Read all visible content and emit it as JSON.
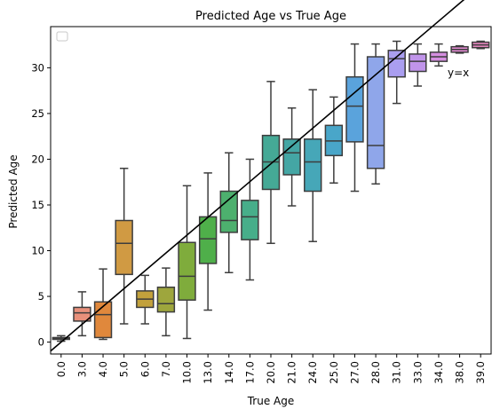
{
  "chart_data": {
    "type": "box",
    "title": "Predicted Age vs True Age",
    "xlabel": "True Age",
    "ylabel": "Predicted Age",
    "ylim": [
      -1.3,
      34.5
    ],
    "yticks": [
      0,
      5,
      10,
      15,
      20,
      25,
      30
    ],
    "grid": false,
    "legend": "top-left (empty)",
    "reference_line": {
      "label": "y=x",
      "color": "#000000"
    },
    "categories": [
      "0.0",
      "3.0",
      "4.0",
      "5.0",
      "6.0",
      "7.0",
      "10.0",
      "13.0",
      "14.0",
      "17.0",
      "20.0",
      "21.0",
      "24.0",
      "25.0",
      "27.0",
      "28.0",
      "31.0",
      "33.0",
      "34.0",
      "38.0",
      "39.0"
    ],
    "boxes": [
      {
        "category": "0.0",
        "min": 0.1,
        "q1": 0.3,
        "median": 0.4,
        "q3": 0.5,
        "max": 0.7,
        "color": "#e07b7b"
      },
      {
        "category": "3.0",
        "min": 0.7,
        "q1": 2.3,
        "median": 3.2,
        "q3": 3.8,
        "max": 5.5,
        "color": "#e8907b"
      },
      {
        "category": "4.0",
        "min": 0.3,
        "q1": 0.5,
        "median": 3.0,
        "q3": 4.4,
        "max": 8.0,
        "color": "#e0883c"
      },
      {
        "category": "5.0",
        "min": 2.0,
        "q1": 7.4,
        "median": 10.8,
        "q3": 13.3,
        "max": 19.0,
        "color": "#d09a43"
      },
      {
        "category": "6.0",
        "min": 2.0,
        "q1": 3.8,
        "median": 4.7,
        "q3": 5.6,
        "max": 7.3,
        "color": "#c2a13c"
      },
      {
        "category": "7.0",
        "min": 0.7,
        "q1": 3.3,
        "median": 4.2,
        "q3": 6.0,
        "max": 8.1,
        "color": "#9ea63d"
      },
      {
        "category": "10.0",
        "min": 0.4,
        "q1": 4.6,
        "median": 7.2,
        "q3": 10.9,
        "max": 17.1,
        "color": "#7fac3c"
      },
      {
        "category": "13.0",
        "min": 3.5,
        "q1": 8.6,
        "median": 11.3,
        "q3": 13.7,
        "max": 18.5,
        "color": "#4faf4a"
      },
      {
        "category": "14.0",
        "min": 7.6,
        "q1": 12.0,
        "median": 13.3,
        "q3": 16.5,
        "max": 20.7,
        "color": "#4db06e"
      },
      {
        "category": "17.0",
        "min": 6.8,
        "q1": 11.2,
        "median": 13.7,
        "q3": 15.5,
        "max": 20.0,
        "color": "#47ae8a"
      },
      {
        "category": "20.0",
        "min": 10.8,
        "q1": 16.7,
        "median": 19.7,
        "q3": 22.6,
        "max": 28.5,
        "color": "#45a996"
      },
      {
        "category": "21.0",
        "min": 14.9,
        "q1": 18.3,
        "median": 20.7,
        "q3": 22.2,
        "max": 25.6,
        "color": "#44a6a4"
      },
      {
        "category": "24.0",
        "min": 11.0,
        "q1": 16.5,
        "median": 19.7,
        "q3": 22.2,
        "max": 27.6,
        "color": "#46a7b8"
      },
      {
        "category": "25.0",
        "min": 17.4,
        "q1": 20.4,
        "median": 22.0,
        "q3": 23.7,
        "max": 26.8,
        "color": "#49a6c9"
      },
      {
        "category": "27.0",
        "min": 16.5,
        "q1": 21.9,
        "median": 25.8,
        "q3": 29.0,
        "max": 32.6,
        "color": "#5aa3dc"
      },
      {
        "category": "28.0",
        "min": 17.3,
        "q1": 19.0,
        "median": 21.5,
        "q3": 31.2,
        "max": 32.6,
        "color": "#8fa6ea"
      },
      {
        "category": "31.0",
        "min": 26.1,
        "q1": 29.0,
        "median": 31.0,
        "q3": 31.9,
        "max": 32.9,
        "color": "#aa9ef0"
      },
      {
        "category": "33.0",
        "min": 28.0,
        "q1": 29.6,
        "median": 30.7,
        "q3": 31.5,
        "max": 32.6,
        "color": "#c094ea"
      },
      {
        "category": "34.0",
        "min": 30.2,
        "q1": 30.7,
        "median": 31.2,
        "q3": 31.7,
        "max": 32.6,
        "color": "#d58ee0"
      },
      {
        "category": "38.0",
        "min": 31.6,
        "q1": 31.7,
        "median": 32.0,
        "q3": 32.3,
        "max": 32.4,
        "color": "#e58bd5"
      },
      {
        "category": "39.0",
        "min": 32.1,
        "q1": 32.2,
        "median": 32.5,
        "q3": 32.8,
        "max": 32.9,
        "color": "#e887c0"
      }
    ]
  }
}
